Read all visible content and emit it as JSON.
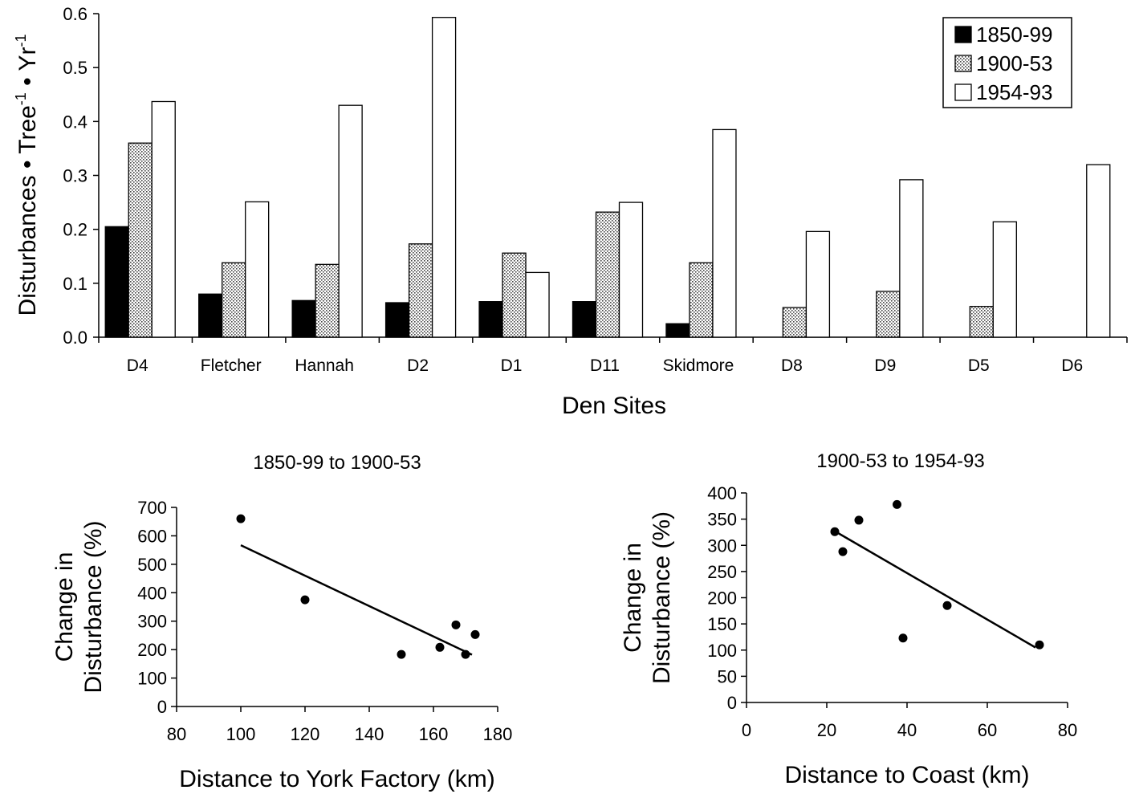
{
  "chart_data": [
    {
      "type": "bar",
      "title": "",
      "xlabel": "Den Sites",
      "ylabel": "Disturbances • Tree⁻¹ • Yr⁻¹",
      "ylabel_parts": [
        "Disturbances • Tree",
        "-1",
        " • Yr",
        "-1"
      ],
      "ylim": [
        0,
        0.6
      ],
      "yticks": [
        "0.0",
        "0.1",
        "0.2",
        "0.3",
        "0.4",
        "0.5",
        "0.6"
      ],
      "legend_position": "top-right",
      "categories": [
        "D4",
        "Fletcher",
        "Hannah",
        "D2",
        "D1",
        "D11",
        "Skidmore",
        "D8",
        "D9",
        "D5",
        "D6"
      ],
      "series": [
        {
          "name": "1850-99",
          "fill": "solid",
          "color": "#000000",
          "values": [
            0.205,
            0.08,
            0.068,
            0.064,
            0.066,
            0.066,
            0.025,
            0,
            0,
            0,
            0
          ]
        },
        {
          "name": "1900-53",
          "fill": "dotted",
          "color": "#bbbbbb",
          "values": [
            0.36,
            0.138,
            0.135,
            0.173,
            0.156,
            0.232,
            0.138,
            0.055,
            0.085,
            0.057,
            0
          ]
        },
        {
          "name": "1954-93",
          "fill": "open",
          "color": "#ffffff",
          "values": [
            0.437,
            0.251,
            0.43,
            0.593,
            0.12,
            0.25,
            0.385,
            0.196,
            0.292,
            0.214,
            0.32
          ]
        }
      ]
    },
    {
      "type": "scatter",
      "title": "1850-99 to 1900-53",
      "xlabel": "Distance to York Factory (km)",
      "ylabel_lines": [
        "Change in",
        "Disturbance (%)"
      ],
      "xlim": [
        80,
        180
      ],
      "ylim": [
        0,
        700
      ],
      "xticks": [
        "80",
        "100",
        "120",
        "140",
        "160",
        "180"
      ],
      "yticks": [
        "0",
        "100",
        "200",
        "300",
        "400",
        "500",
        "600",
        "700"
      ],
      "points": [
        {
          "x": 100,
          "y": 660
        },
        {
          "x": 120,
          "y": 375
        },
        {
          "x": 150,
          "y": 183
        },
        {
          "x": 162,
          "y": 208
        },
        {
          "x": 167,
          "y": 287
        },
        {
          "x": 170,
          "y": 183
        },
        {
          "x": 173,
          "y": 253
        }
      ],
      "trendline": {
        "x": [
          100,
          172
        ],
        "y": [
          567,
          182
        ]
      }
    },
    {
      "type": "scatter",
      "title": "1900-53 to 1954-93",
      "xlabel": "Distance to Coast (km)",
      "ylabel_lines": [
        "Change in",
        "Disturbance (%)"
      ],
      "xlim": [
        0,
        80
      ],
      "ylim": [
        0,
        400
      ],
      "xticks": [
        "0",
        "20",
        "40",
        "60",
        "80"
      ],
      "yticks": [
        "0",
        "50",
        "100",
        "150",
        "200",
        "250",
        "300",
        "350",
        "400"
      ],
      "points": [
        {
          "x": 22,
          "y": 326
        },
        {
          "x": 24,
          "y": 288
        },
        {
          "x": 28,
          "y": 348
        },
        {
          "x": 37.5,
          "y": 378
        },
        {
          "x": 39,
          "y": 123
        },
        {
          "x": 50,
          "y": 185
        },
        {
          "x": 73,
          "y": 110
        }
      ],
      "trendline": {
        "x": [
          22,
          72
        ],
        "y": [
          327,
          105
        ]
      }
    }
  ]
}
